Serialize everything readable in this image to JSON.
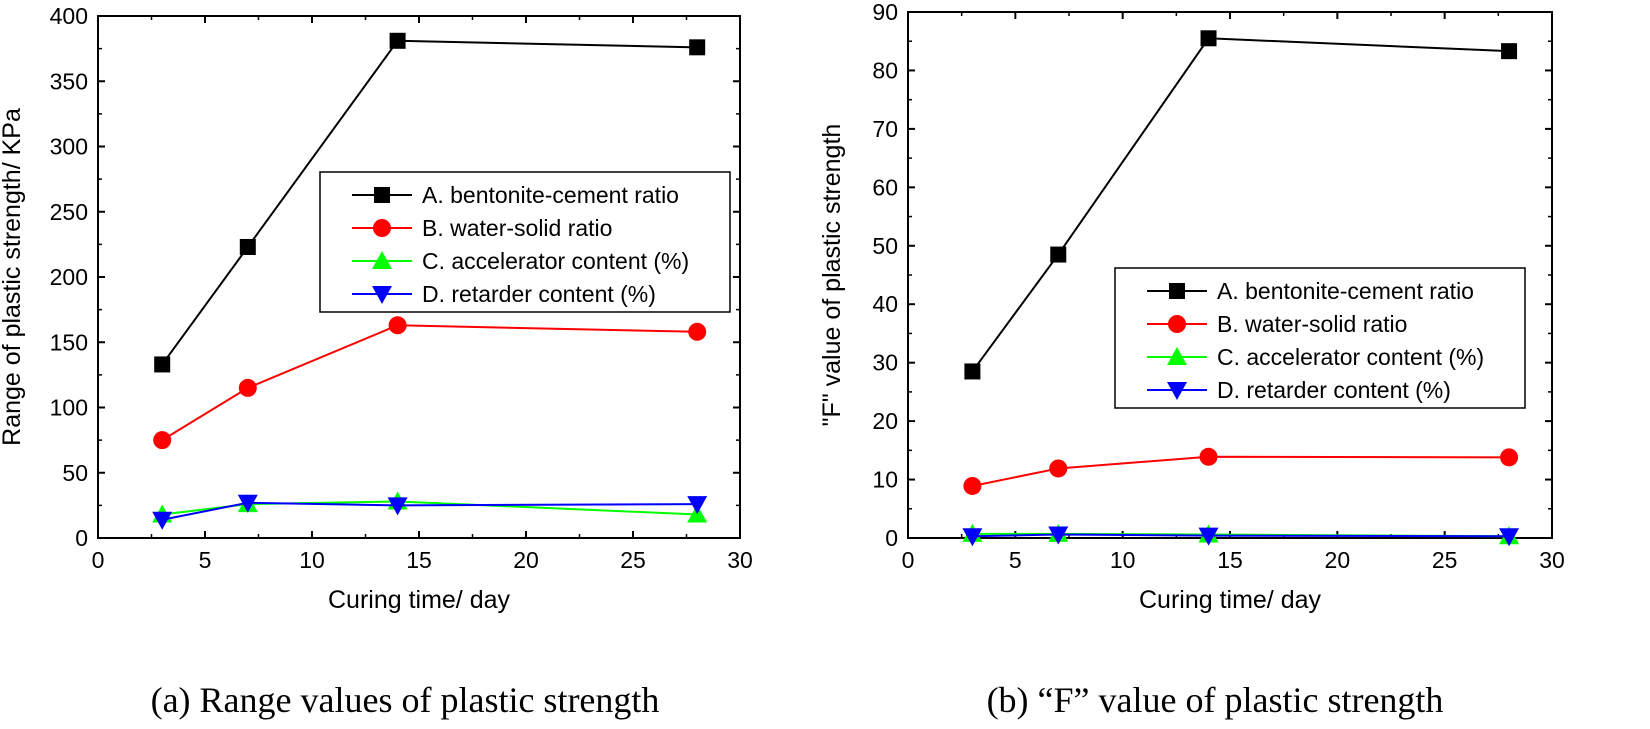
{
  "colors": {
    "series_a": "#000000",
    "series_b": "#ff0000",
    "series_c": "#00ff00",
    "series_d": "#0000ff",
    "axis": "#000000",
    "background": "#ffffff"
  },
  "chart_data": [
    {
      "type": "line",
      "caption": "(a) Range values of plastic strength",
      "xlabel": "Curing time/ day",
      "ylabel": "Range of plastic strength/ KPa",
      "xlim": [
        0,
        30
      ],
      "ylim": [
        0,
        400
      ],
      "xticks": [
        "0",
        "5",
        "10",
        "15",
        "20",
        "25",
        "30"
      ],
      "yticks": [
        "0",
        "50",
        "100",
        "150",
        "200",
        "250",
        "300",
        "350",
        "400"
      ],
      "x": [
        3,
        7,
        14,
        28
      ],
      "grid": false,
      "legend_position": "center-right",
      "series": [
        {
          "name": "A. bentonite-cement ratio",
          "marker": "square",
          "values": [
            133,
            223,
            381,
            376
          ]
        },
        {
          "name": "B. water-solid ratio",
          "marker": "circle",
          "values": [
            75,
            115,
            163,
            158
          ]
        },
        {
          "name": "C. accelerator content (%)",
          "marker": "triangle-up",
          "values": [
            18,
            26,
            28,
            18
          ]
        },
        {
          "name": "D. retarder content (%)",
          "marker": "triangle-down",
          "values": [
            14,
            27,
            25,
            26
          ]
        }
      ]
    },
    {
      "type": "line",
      "caption": "(b) “F” value of plastic strength",
      "xlabel": "Curing time/ day",
      "ylabel": "\"F\" value of plastic strength",
      "xlim": [
        0,
        30
      ],
      "ylim": [
        0,
        90
      ],
      "xticks": [
        "0",
        "5",
        "10",
        "15",
        "20",
        "25",
        "30"
      ],
      "yticks": [
        "0",
        "10",
        "20",
        "30",
        "40",
        "50",
        "60",
        "70",
        "80",
        "90"
      ],
      "x": [
        3,
        7,
        14,
        28
      ],
      "grid": false,
      "legend_position": "center-right",
      "series": [
        {
          "name": "A. bentonite-cement ratio",
          "marker": "square",
          "values": [
            28.5,
            48.5,
            85.5,
            83.3
          ]
        },
        {
          "name": "B. water-solid ratio",
          "marker": "circle",
          "values": [
            8.9,
            11.9,
            13.9,
            13.8
          ]
        },
        {
          "name": "C. accelerator content (%)",
          "marker": "triangle-up",
          "values": [
            0.7,
            0.7,
            0.6,
            0.3
          ]
        },
        {
          "name": "D. retarder content (%)",
          "marker": "triangle-down",
          "values": [
            0.3,
            0.6,
            0.4,
            0.3
          ]
        }
      ]
    }
  ]
}
